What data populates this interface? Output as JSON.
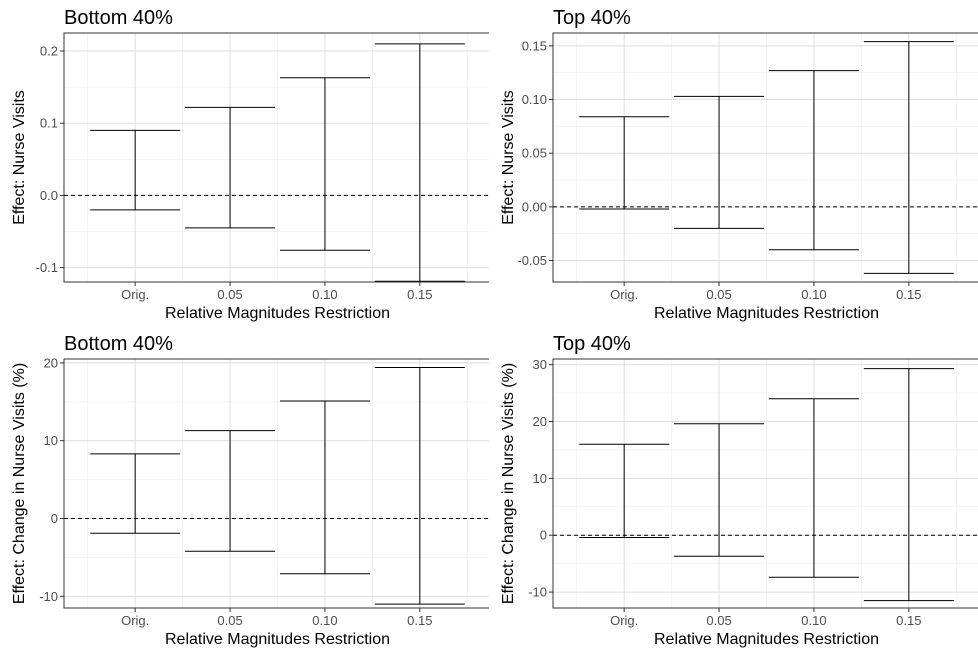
{
  "chart_data": [
    {
      "type": "errorbar",
      "title": "Bottom 40%",
      "xlabel": "Relative Magnitudes Restriction",
      "ylabel": "Effect: Nurse Visits",
      "categories": [
        "Orig.",
        "0.05",
        "0.10",
        "0.15"
      ],
      "lower": [
        -0.02,
        -0.045,
        -0.076,
        -0.119
      ],
      "upper": [
        0.09,
        0.122,
        0.163,
        0.21
      ],
      "yticks": [
        0.2,
        0.1,
        0.0,
        -0.1
      ],
      "ytick_labels": [
        "0.2",
        "0.1",
        "0.0",
        "-0.1"
      ],
      "ylim": [
        -0.12,
        0.225
      ],
      "reference_line": 0,
      "grid": true
    },
    {
      "type": "errorbar",
      "title": "Top 40%",
      "xlabel": "Relative Magnitudes Restriction",
      "ylabel": "Effect: Nurse Visits",
      "categories": [
        "Orig.",
        "0.05",
        "0.10",
        "0.15"
      ],
      "lower": [
        -0.002,
        -0.02,
        -0.04,
        -0.062
      ],
      "upper": [
        0.084,
        0.103,
        0.127,
        0.154
      ],
      "yticks": [
        0.15,
        0.1,
        0.05,
        0.0,
        -0.05
      ],
      "ytick_labels": [
        "0.15",
        "0.10",
        "0.05",
        "0.00",
        "-0.05"
      ],
      "ylim": [
        -0.07,
        0.162
      ],
      "reference_line": 0,
      "grid": true
    },
    {
      "type": "errorbar",
      "title": "Bottom 40%",
      "xlabel": "Relative Magnitudes Restriction",
      "ylabel": "Effect: Change in Nurse Visits (%)",
      "categories": [
        "Orig.",
        "0.05",
        "0.10",
        "0.15"
      ],
      "lower": [
        -1.9,
        -4.2,
        -7.1,
        -11.0
      ],
      "upper": [
        8.3,
        11.3,
        15.1,
        19.4
      ],
      "yticks": [
        20,
        10,
        0,
        -10
      ],
      "ytick_labels": [
        "20",
        "10",
        "0",
        "-10"
      ],
      "ylim": [
        -11.5,
        20.5
      ],
      "reference_line": 0,
      "grid": true
    },
    {
      "type": "errorbar",
      "title": "Top 40%",
      "xlabel": "Relative Magnitudes Restriction",
      "ylabel": "Effect: Change in Nurse Visits (%)",
      "categories": [
        "Orig.",
        "0.05",
        "0.10",
        "0.15"
      ],
      "lower": [
        -0.4,
        -3.7,
        -7.4,
        -11.5
      ],
      "upper": [
        16.0,
        19.6,
        24.0,
        29.3
      ],
      "yticks": [
        30,
        20,
        10,
        0,
        -10
      ],
      "ytick_labels": [
        "30",
        "20",
        "10",
        "0",
        "-10"
      ],
      "ylim": [
        -12.8,
        31.0
      ],
      "reference_line": 0,
      "grid": true
    }
  ]
}
